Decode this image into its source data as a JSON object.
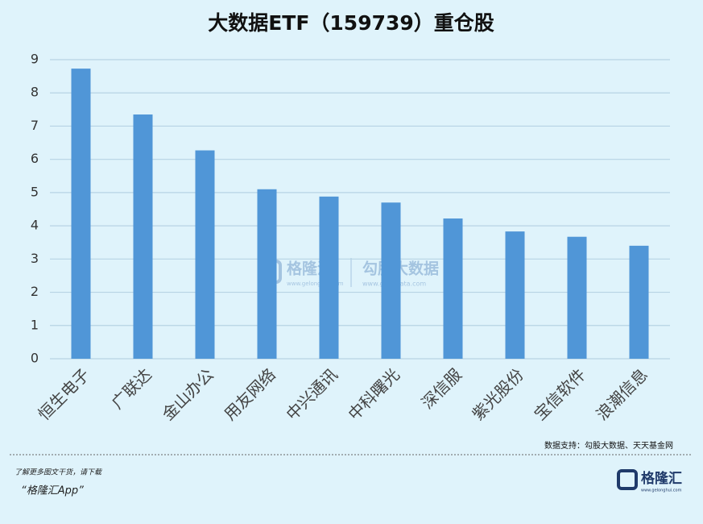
{
  "chart_data": {
    "type": "bar",
    "title": "大数据ETF（159739）重仓股",
    "categories": [
      "恒生电子",
      "广联达",
      "金山办公",
      "用友网络",
      "中兴通讯",
      "中科曙光",
      "深信服",
      "紫光股份",
      "宝信软件",
      "浪潮信息"
    ],
    "values": [
      8.73,
      7.35,
      6.27,
      5.1,
      4.88,
      4.7,
      4.22,
      3.83,
      3.67,
      3.4
    ],
    "color": "#5096d7",
    "ylim": [
      0,
      9
    ],
    "yticks": [
      0,
      1,
      2,
      3,
      4,
      5,
      6,
      7,
      8,
      9
    ],
    "grid": true,
    "source": "数据支持：勾股大数据、天天基金网"
  },
  "watermark": {
    "brand": "格隆汇",
    "brand_url": "www.gelonghui.com",
    "partner": "勾股大数据",
    "partner_url": "www.gogudata.com"
  },
  "footer": {
    "note": "了解更多图文干货，请下载",
    "app": "“格隆汇App”",
    "logo": "格隆汇",
    "logo_url": "www.gelonghui.com"
  }
}
